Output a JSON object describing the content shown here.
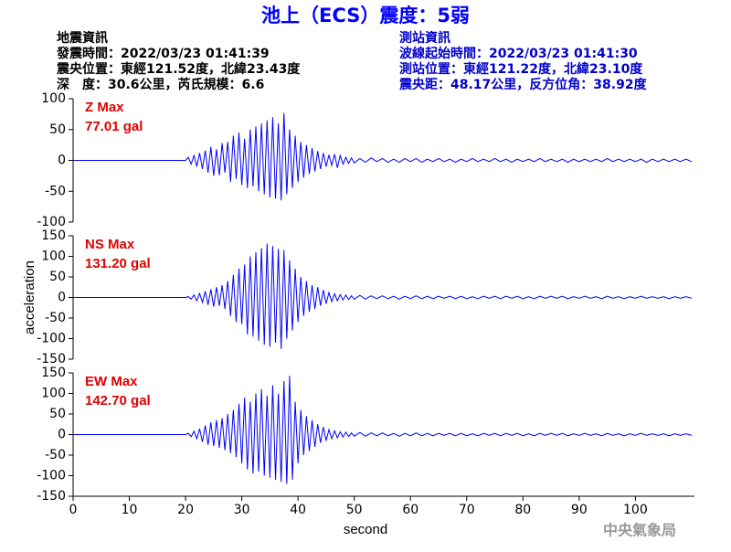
{
  "header": {
    "title": "池上（ECS）震度：5弱",
    "left": [
      "地震資訊",
      "發震時間：2022/03/23 01:41:39",
      "震央位置：東經121.52度，北緯23.43度",
      "深　度：30.6公里，芮氏規模：6.6"
    ],
    "right": [
      "測站資訊",
      "波線起始時間：2022/03/23 01:41:30",
      "測站位置：東經121.22度，北緯23.10度",
      "震央距：48.17公里，反方位角：38.92度"
    ],
    "footer": "中央氣象局"
  },
  "chart_data": [
    {
      "type": "line",
      "annotations": [
        "Z Max",
        "77.01 gal"
      ],
      "color": "#0000ff",
      "x": [
        0,
        20,
        20.5,
        21,
        21.5,
        22,
        22.5,
        23,
        23.5,
        24,
        24.5,
        25,
        25.5,
        26,
        26.5,
        27,
        27.5,
        28,
        28.5,
        29,
        29.5,
        30,
        30.5,
        31,
        31.5,
        32,
        32.5,
        33,
        33.5,
        34,
        34.5,
        35,
        35.5,
        36,
        36.5,
        37,
        37.5,
        38,
        38.5,
        39,
        39.5,
        40,
        40.5,
        41,
        41.5,
        42,
        42.5,
        43,
        43.5,
        44,
        44.5,
        45,
        45.5,
        46,
        46.5,
        47,
        47.5,
        48,
        48.5,
        49,
        49.5,
        50,
        51,
        52,
        53,
        54,
        55,
        56,
        57,
        58,
        59,
        60,
        61,
        62,
        63,
        64,
        65,
        66,
        67,
        68,
        69,
        70,
        71,
        72,
        73,
        74,
        75,
        76,
        77,
        78,
        79,
        80,
        81,
        82,
        83,
        84,
        85,
        86,
        87,
        88,
        89,
        90,
        91,
        92,
        93,
        94,
        95,
        96,
        97,
        98,
        99,
        100,
        101,
        102,
        103,
        104,
        105,
        106,
        107,
        108,
        109,
        110
      ],
      "values": [
        0,
        0,
        5,
        -6,
        8,
        -10,
        12,
        -14,
        16,
        -20,
        22,
        -25,
        18,
        -24,
        28,
        -20,
        30,
        -35,
        40,
        -30,
        45,
        -40,
        35,
        -45,
        50,
        -42,
        55,
        -50,
        60,
        -55,
        65,
        -60,
        70,
        -62,
        60,
        -65,
        77.01,
        -55,
        50,
        -45,
        40,
        -35,
        30,
        -28,
        25,
        -22,
        20,
        -18,
        15,
        -14,
        12,
        -10,
        9,
        -8,
        10,
        -12,
        8,
        -6,
        5,
        -5,
        4,
        -4,
        3,
        -3,
        4,
        -2,
        3,
        -3,
        2,
        -3,
        3,
        -2,
        3,
        -3,
        2,
        -2,
        3,
        -2,
        2,
        -3,
        2,
        -2,
        3,
        -2,
        2,
        -2,
        3,
        -2,
        2,
        -3,
        2,
        -2,
        2,
        -2,
        3,
        -2,
        2,
        -2,
        2,
        -3,
        2,
        -2,
        2,
        -2,
        2,
        -2,
        3,
        -2,
        2,
        -2,
        2,
        -2,
        2,
        -3,
        2,
        -2,
        2,
        -2,
        2,
        -2,
        2,
        -2
      ],
      "ylim": [
        -100,
        100
      ],
      "yticks": [
        -100,
        -50,
        0,
        50,
        100
      ]
    },
    {
      "type": "line",
      "annotations": [
        "NS Max",
        "131.20 gal"
      ],
      "color": "#0000ff",
      "ylabel": "acceleration",
      "x": [
        0,
        20,
        20.5,
        21,
        21.5,
        22,
        22.5,
        23,
        23.5,
        24,
        24.5,
        25,
        25.5,
        26,
        26.5,
        27,
        27.5,
        28,
        28.5,
        29,
        29.5,
        30,
        30.5,
        31,
        31.5,
        32,
        32.5,
        33,
        33.5,
        34,
        34.5,
        35,
        35.5,
        36,
        36.5,
        37,
        37.5,
        38,
        38.5,
        39,
        39.5,
        40,
        40.5,
        41,
        41.5,
        42,
        42.5,
        43,
        43.5,
        44,
        44.5,
        45,
        45.5,
        46,
        46.5,
        47,
        47.5,
        48,
        48.5,
        49,
        49.5,
        50,
        51,
        52,
        53,
        54,
        55,
        56,
        57,
        58,
        59,
        60,
        61,
        62,
        63,
        64,
        65,
        66,
        67,
        68,
        69,
        70,
        71,
        72,
        73,
        74,
        75,
        76,
        77,
        78,
        79,
        80,
        81,
        82,
        83,
        84,
        85,
        86,
        87,
        88,
        89,
        90,
        91,
        92,
        93,
        94,
        95,
        96,
        97,
        98,
        99,
        100,
        101,
        102,
        103,
        104,
        105,
        106,
        107,
        108,
        109,
        110
      ],
      "values": [
        0,
        0,
        2,
        -4,
        6,
        -8,
        10,
        -12,
        15,
        -18,
        20,
        -22,
        25,
        -20,
        30,
        -28,
        40,
        -45,
        55,
        -60,
        70,
        -65,
        80,
        -90,
        100,
        -95,
        110,
        -105,
        120,
        -115,
        131.2,
        -120,
        125,
        -110,
        118,
        -125,
        115,
        -100,
        90,
        -80,
        70,
        -60,
        50,
        -45,
        40,
        -35,
        30,
        -28,
        25,
        -20,
        18,
        -15,
        12,
        -10,
        9,
        -8,
        7,
        -6,
        6,
        -5,
        4,
        -4,
        5,
        -4,
        4,
        -3,
        4,
        -3,
        3,
        -4,
        3,
        -3,
        4,
        -3,
        3,
        -3,
        3,
        -2,
        3,
        -3,
        3,
        -3,
        2,
        -3,
        3,
        -2,
        3,
        -3,
        3,
        -2,
        3,
        -3,
        2,
        -3,
        3,
        -2,
        3,
        -2,
        3,
        -3,
        2,
        -2,
        3,
        -2,
        2,
        -3,
        3,
        -2,
        2,
        -3,
        2,
        -2,
        3,
        -2,
        2,
        -2,
        2,
        -3,
        2,
        -2,
        2,
        -2
      ],
      "ylim": [
        -150,
        150
      ],
      "yticks": [
        -150,
        -100,
        -50,
        0,
        50,
        100,
        150
      ]
    },
    {
      "type": "line",
      "annotations": [
        "EW Max",
        "142.70 gal"
      ],
      "color": "#0000ff",
      "xlabel": "second",
      "x": [
        0,
        20,
        20.5,
        21,
        21.5,
        22,
        22.5,
        23,
        23.5,
        24,
        24.5,
        25,
        25.5,
        26,
        26.5,
        27,
        27.5,
        28,
        28.5,
        29,
        29.5,
        30,
        30.5,
        31,
        31.5,
        32,
        32.5,
        33,
        33.5,
        34,
        34.5,
        35,
        35.5,
        36,
        36.5,
        37,
        37.5,
        38,
        38.5,
        39,
        39.5,
        40,
        40.5,
        41,
        41.5,
        42,
        42.5,
        43,
        43.5,
        44,
        44.5,
        45,
        45.5,
        46,
        46.5,
        47,
        47.5,
        48,
        48.5,
        49,
        49.5,
        50,
        51,
        52,
        53,
        54,
        55,
        56,
        57,
        58,
        59,
        60,
        61,
        62,
        63,
        64,
        65,
        66,
        67,
        68,
        69,
        70,
        71,
        72,
        73,
        74,
        75,
        76,
        77,
        78,
        79,
        80,
        81,
        82,
        83,
        84,
        85,
        86,
        87,
        88,
        89,
        90,
        91,
        92,
        93,
        94,
        95,
        96,
        97,
        98,
        99,
        100,
        101,
        102,
        103,
        104,
        105,
        106,
        107,
        108,
        109,
        110
      ],
      "values": [
        0,
        0,
        3,
        -5,
        8,
        -10,
        14,
        -18,
        22,
        -25,
        30,
        -28,
        35,
        -32,
        40,
        -38,
        50,
        -45,
        60,
        -55,
        75,
        -70,
        90,
        -85,
        80,
        -95,
        100,
        -90,
        110,
        -100,
        95,
        -105,
        120,
        -110,
        100,
        -115,
        130,
        -120,
        142.7,
        -110,
        80,
        -70,
        60,
        -50,
        45,
        -40,
        35,
        -30,
        25,
        -20,
        18,
        -15,
        12,
        -10,
        9,
        -8,
        7,
        -6,
        6,
        -5,
        4,
        -4,
        5,
        -4,
        4,
        -3,
        4,
        -3,
        3,
        -4,
        3,
        -3,
        4,
        -3,
        3,
        -3,
        3,
        -2,
        3,
        -3,
        3,
        -3,
        2,
        -3,
        3,
        -2,
        3,
        -3,
        3,
        -2,
        3,
        -3,
        2,
        -3,
        3,
        -2,
        3,
        -2,
        3,
        -3,
        2,
        -2,
        3,
        -2,
        2,
        -3,
        3,
        -2,
        2,
        -3,
        2,
        -2,
        3,
        -2,
        2,
        -2,
        2,
        -3,
        2,
        -2,
        2,
        -2
      ],
      "xlim": [
        0,
        110.5
      ],
      "xticks": [
        0,
        10,
        20,
        30,
        40,
        50,
        60,
        70,
        80,
        90,
        100
      ],
      "ylim": [
        -150,
        150
      ],
      "yticks": [
        -150,
        -100,
        -50,
        0,
        50,
        100,
        150
      ]
    }
  ]
}
